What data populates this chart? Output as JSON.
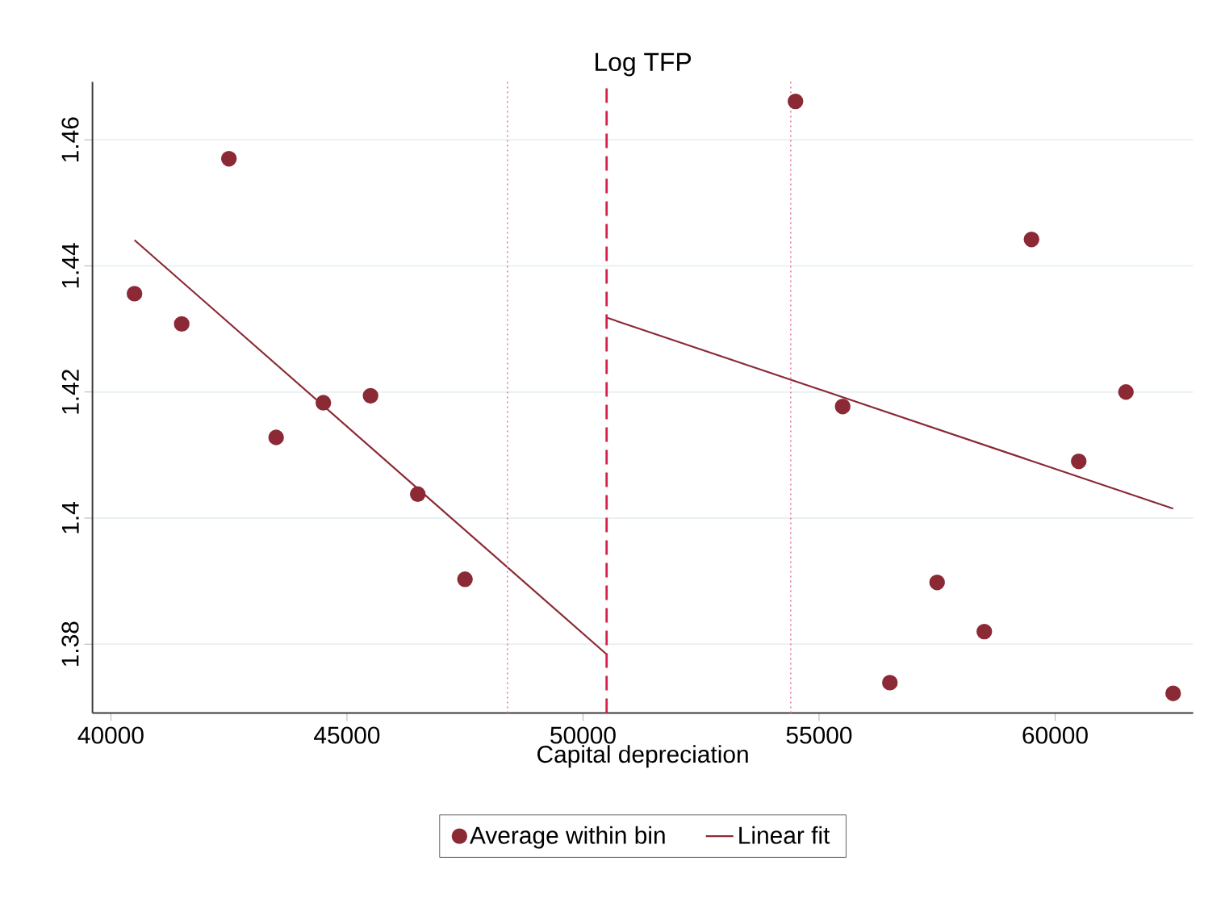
{
  "chart_data": {
    "type": "scatter",
    "title": "Log TFP",
    "xlabel": "Capital depreciation",
    "xlim": [
      39610,
      62925
    ],
    "xticks": [
      40000,
      45000,
      50000,
      55000,
      60000
    ],
    "ylim": [
      1.3691,
      1.4692
    ],
    "yticks": [
      1.38,
      1.4,
      1.42,
      1.44,
      1.46
    ],
    "grid": "y",
    "legend": "bottom",
    "series": [
      {
        "name": "Average within bin",
        "marker": "circle",
        "color": "#8b2a35",
        "x": [
          40500,
          41500,
          42500,
          43500,
          44500,
          45500,
          46500,
          47500,
          54500,
          55500,
          56500,
          57500,
          58500,
          59500,
          60500,
          61500,
          62500
        ],
        "values": [
          1.4356,
          1.4308,
          1.457,
          1.4128,
          1.4183,
          1.4194,
          1.4038,
          1.3903,
          1.4661,
          1.4177,
          1.3739,
          1.3898,
          1.382,
          1.4442,
          1.409,
          1.42,
          1.3722
        ]
      },
      {
        "name": "Linear fit",
        "type": "line",
        "marker": "none",
        "line_style": "solid",
        "color": "#8b2a35",
        "x": [
          40500,
          50500
        ],
        "values": [
          1.4441,
          1.3784
        ]
      },
      {
        "type": "line",
        "marker": "none",
        "line_style": "solid",
        "color": "#8b2a35",
        "x": [
          50500,
          62500
        ],
        "values": [
          1.4318,
          1.4015
        ]
      }
    ],
    "ref_lines": [
      {
        "axis": "x",
        "value": 50500,
        "color": "#d6204a",
        "line_style": "dashed"
      },
      {
        "axis": "x",
        "value": 48400,
        "color": "#ea7896",
        "line_style": "dotted"
      },
      {
        "axis": "x",
        "value": 54400,
        "color": "#ea7896",
        "line_style": "dotted"
      }
    ]
  }
}
